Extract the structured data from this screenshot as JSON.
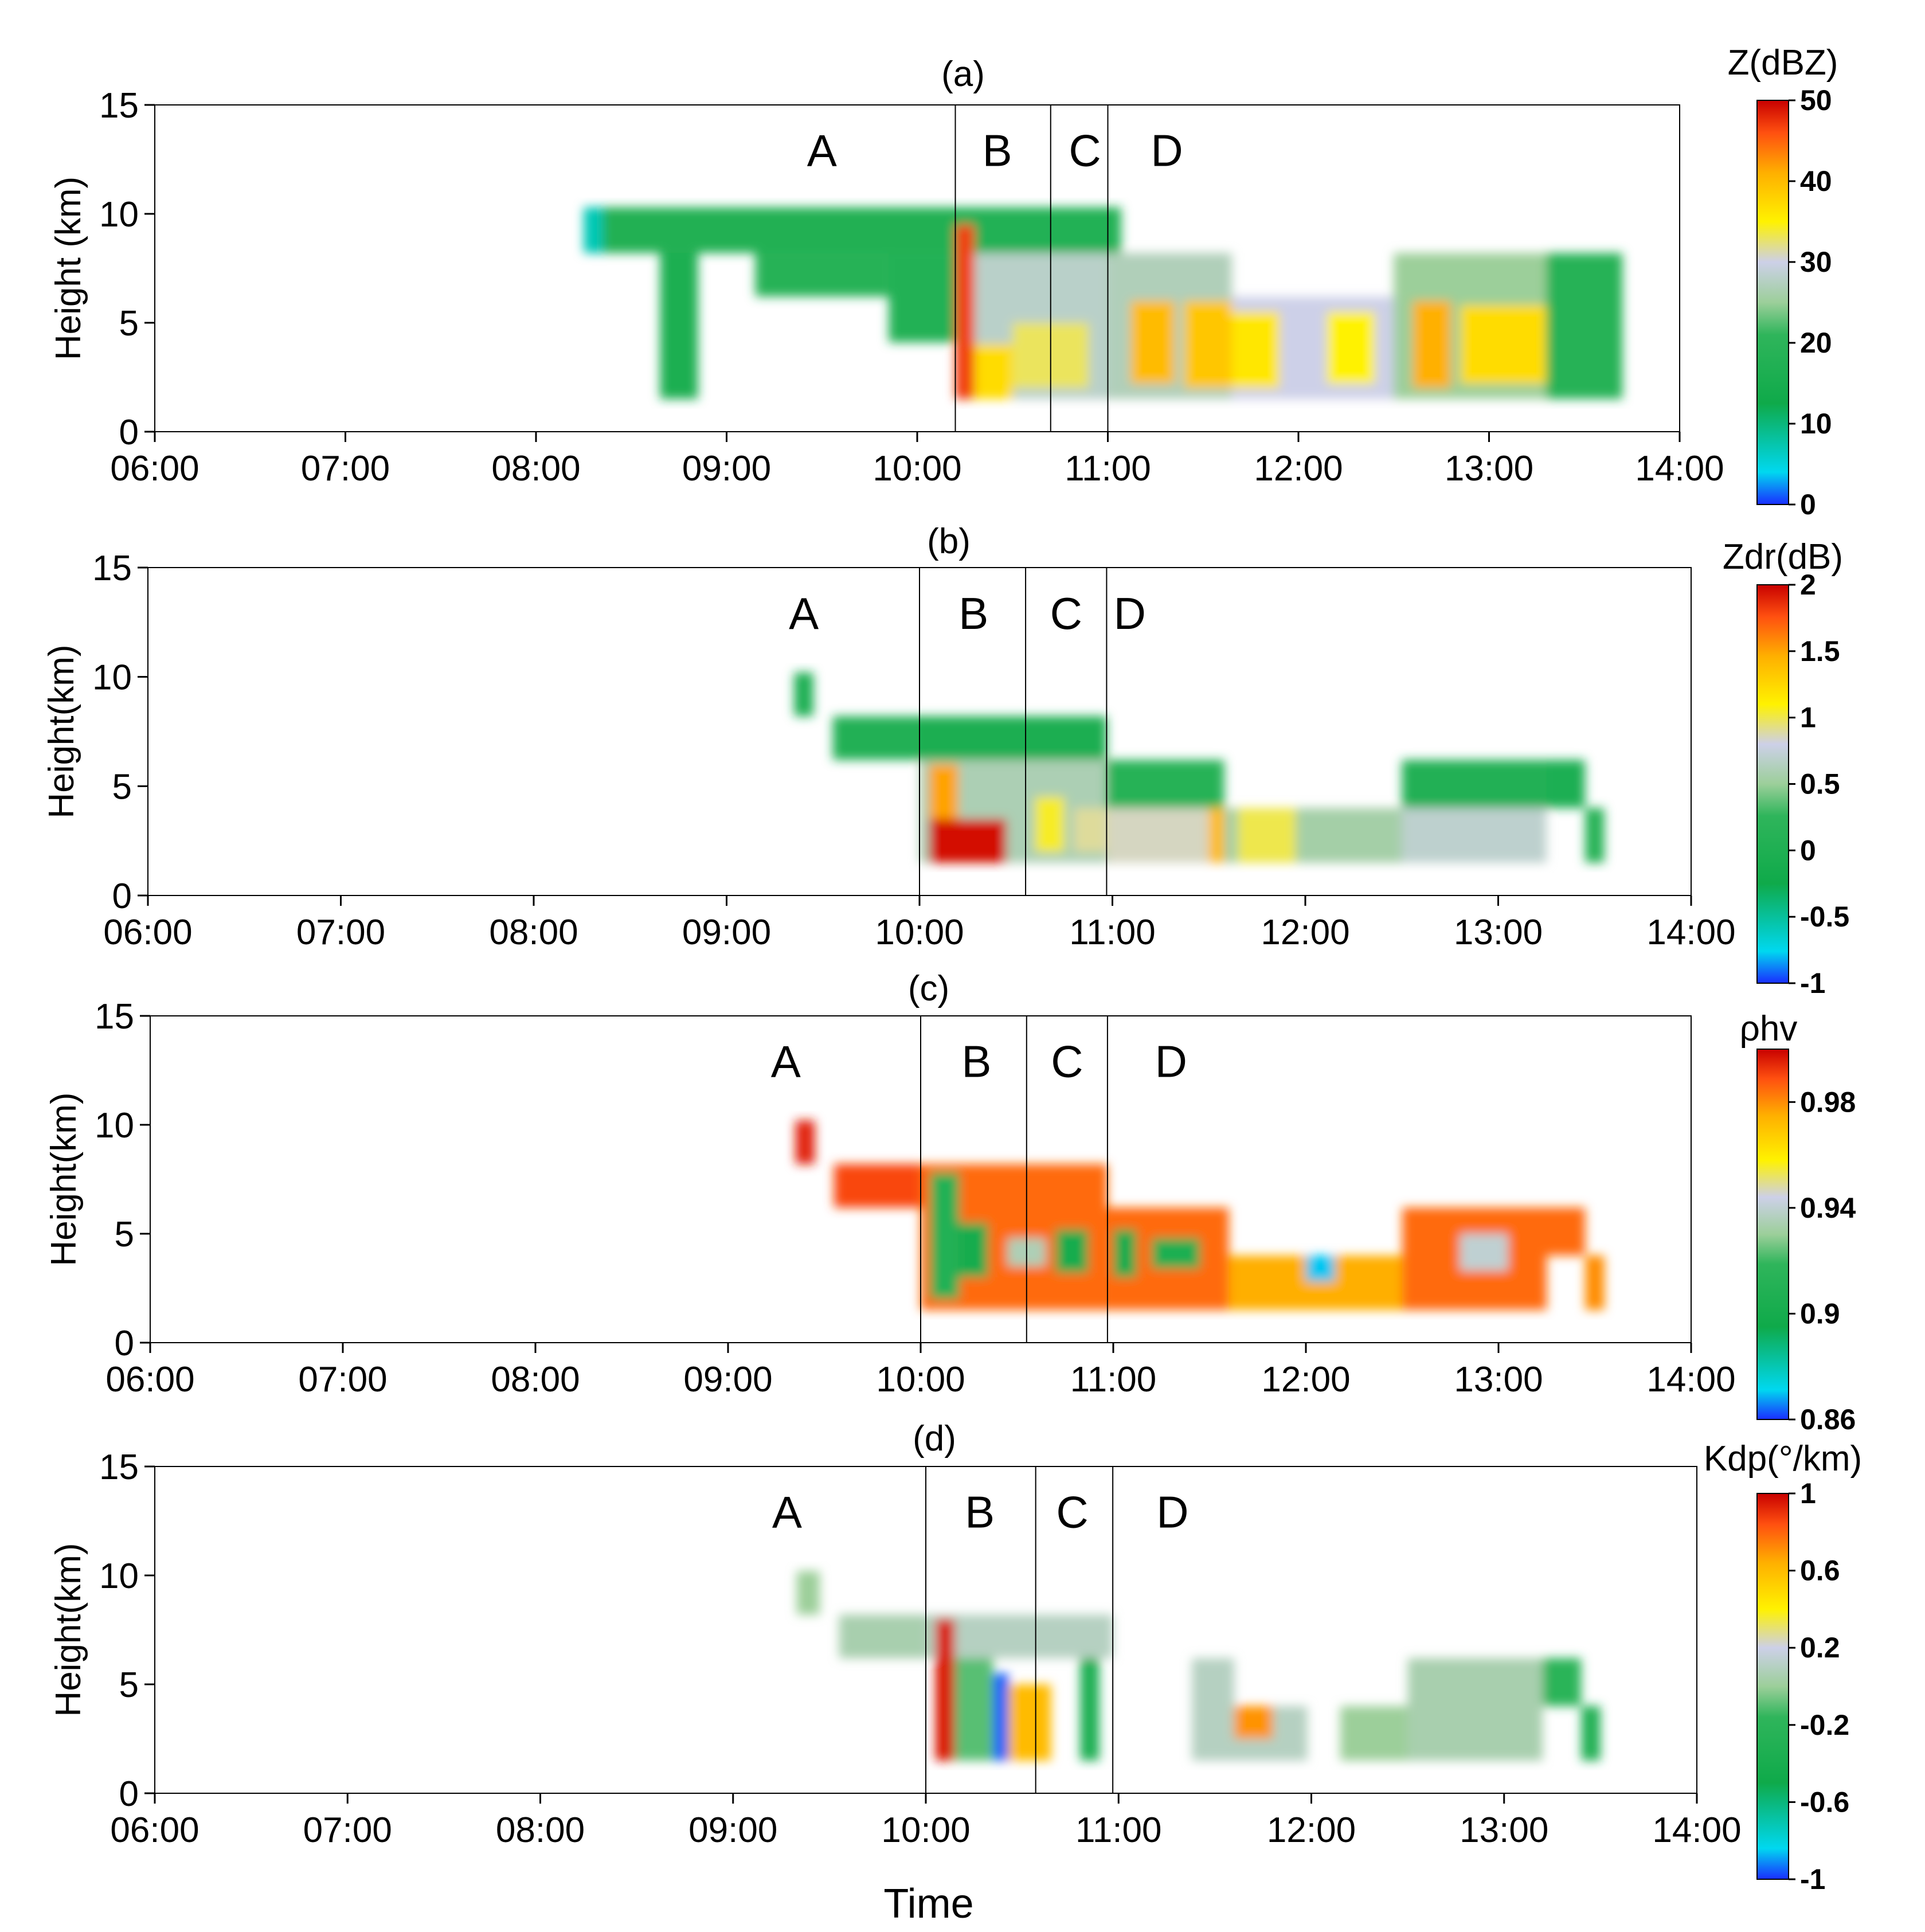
{
  "figure": {
    "xlabel": "Time"
  },
  "chart_data": [
    {
      "type": "heatmap",
      "title": "(a)",
      "ylabel": "Height (km)",
      "xlim": [
        6,
        14
      ],
      "ylim": [
        0,
        15
      ],
      "xticks": [
        6,
        7,
        8,
        9,
        10,
        11,
        12,
        13,
        14
      ],
      "xticklabels": [
        "06:00",
        "07:00",
        "08:00",
        "09:00",
        "10:00",
        "11:00",
        "12:00",
        "13:00",
        "14:00"
      ],
      "yticks": [
        0,
        5,
        10,
        15
      ],
      "yticklabels": [
        "0",
        "5",
        "10",
        "15"
      ],
      "dividers": [
        10.2,
        10.7,
        11.0
      ],
      "phases": [
        {
          "label": "A",
          "x": 9.5
        },
        {
          "label": "B",
          "x": 10.42
        },
        {
          "label": "C",
          "x": 10.88
        },
        {
          "label": "D",
          "x": 11.31
        }
      ],
      "colorbar": {
        "title": "Z(dBZ)",
        "range": [
          0,
          50
        ],
        "ticks": [
          0,
          10,
          20,
          30,
          40,
          50
        ],
        "ticklabels": [
          "0",
          "10",
          "20",
          "30",
          "40",
          "50"
        ]
      },
      "regions": [
        {
          "x0": 8.25,
          "x1": 10.2,
          "y0": 8.2,
          "y1": 10.3,
          "value": 17
        },
        {
          "x0": 8.25,
          "x1": 8.35,
          "y0": 8.2,
          "y1": 10.3,
          "value": 7
        },
        {
          "x0": 8.65,
          "x1": 8.85,
          "y0": 1.5,
          "y1": 8.2,
          "value": 16
        },
        {
          "x0": 9.15,
          "x1": 9.85,
          "y0": 6.2,
          "y1": 8.2,
          "value": 19
        },
        {
          "x0": 9.85,
          "x1": 10.2,
          "y0": 4.1,
          "y1": 8.2,
          "value": 18
        },
        {
          "x0": 10.2,
          "x1": 11.07,
          "y0": 8.2,
          "y1": 10.3,
          "value": 18
        },
        {
          "x0": 10.2,
          "x1": 11.0,
          "y0": 1.5,
          "y1": 8.2,
          "value": 28
        },
        {
          "x0": 10.2,
          "x1": 10.3,
          "y0": 1.5,
          "y1": 9.5,
          "value": 47
        },
        {
          "x0": 10.3,
          "x1": 10.5,
          "y0": 1.5,
          "y1": 4.0,
          "value": 37
        },
        {
          "x0": 10.5,
          "x1": 10.9,
          "y0": 2.0,
          "y1": 5.0,
          "value": 33
        },
        {
          "x0": 11.0,
          "x1": 11.65,
          "y0": 1.5,
          "y1": 8.2,
          "value": 27
        },
        {
          "x0": 11.12,
          "x1": 11.35,
          "y0": 2.2,
          "y1": 6.0,
          "value": 40
        },
        {
          "x0": 11.4,
          "x1": 11.65,
          "y0": 2.0,
          "y1": 6.0,
          "value": 39
        },
        {
          "x0": 11.65,
          "x1": 12.5,
          "y0": 1.5,
          "y1": 6.2,
          "value": 30
        },
        {
          "x0": 11.65,
          "x1": 11.9,
          "y0": 2.0,
          "y1": 5.5,
          "value": 36
        },
        {
          "x0": 12.15,
          "x1": 12.4,
          "y0": 2.2,
          "y1": 5.5,
          "value": 35
        },
        {
          "x0": 12.5,
          "x1": 13.7,
          "y0": 1.5,
          "y1": 8.2,
          "value": 25
        },
        {
          "x0": 12.6,
          "x1": 12.8,
          "y0": 2.0,
          "y1": 6.0,
          "value": 41
        },
        {
          "x0": 12.85,
          "x1": 13.3,
          "y0": 2.2,
          "y1": 5.8,
          "value": 37
        },
        {
          "x0": 13.3,
          "x1": 13.7,
          "y0": 1.5,
          "y1": 8.2,
          "value": 19
        }
      ]
    },
    {
      "type": "heatmap",
      "title": "(b)",
      "ylabel": "Height(km)",
      "xlim": [
        6,
        14
      ],
      "ylim": [
        0,
        15
      ],
      "xticks": [
        6,
        7,
        8,
        9,
        10,
        11,
        12,
        13,
        14
      ],
      "xticklabels": [
        "06:00",
        "07:00",
        "08:00",
        "09:00",
        "10:00",
        "11:00",
        "12:00",
        "13:00",
        "14:00"
      ],
      "yticks": [
        0,
        5,
        10,
        15
      ],
      "yticklabels": [
        "0",
        "5",
        "10",
        "15"
      ],
      "dividers": [
        10.0,
        10.55,
        10.97
      ],
      "phases": [
        {
          "label": "A",
          "x": 9.4
        },
        {
          "label": "B",
          "x": 10.28
        },
        {
          "label": "C",
          "x": 10.76
        },
        {
          "label": "D",
          "x": 11.09
        }
      ],
      "colorbar": {
        "title": "Zdr(dB)",
        "range": [
          -1,
          2
        ],
        "ticks": [
          -1,
          -0.5,
          0,
          0.5,
          1,
          1.5,
          2
        ],
        "ticklabels": [
          "-1",
          "-0.5",
          "0",
          "0.5",
          "1",
          "1.5",
          "2"
        ]
      },
      "regions": [
        {
          "x0": 9.35,
          "x1": 9.45,
          "y0": 8.2,
          "y1": 10.2,
          "value": 0.0
        },
        {
          "x0": 9.55,
          "x1": 10.0,
          "y0": 6.2,
          "y1": 8.2,
          "value": 0.05
        },
        {
          "x0": 10.0,
          "x1": 10.97,
          "y0": 6.2,
          "y1": 8.2,
          "value": -0.05
        },
        {
          "x0": 10.0,
          "x1": 10.97,
          "y0": 1.5,
          "y1": 6.2,
          "value": 0.6
        },
        {
          "x0": 10.05,
          "x1": 10.45,
          "y0": 1.5,
          "y1": 3.5,
          "value": 1.95
        },
        {
          "x0": 10.05,
          "x1": 10.2,
          "y0": 3.5,
          "y1": 6.0,
          "value": 1.5
        },
        {
          "x0": 10.6,
          "x1": 10.75,
          "y0": 2.0,
          "y1": 4.5,
          "value": 1.05
        },
        {
          "x0": 10.8,
          "x1": 10.97,
          "y0": 2.0,
          "y1": 4.0,
          "value": 0.9
        },
        {
          "x0": 10.97,
          "x1": 11.58,
          "y0": 6.2,
          "y1": 6.2,
          "value": 0.0
        },
        {
          "x0": 10.97,
          "x1": 11.58,
          "y0": 4.0,
          "y1": 6.2,
          "value": 0.1
        },
        {
          "x0": 10.97,
          "x1": 11.58,
          "y0": 1.5,
          "y1": 4.0,
          "value": 0.85
        },
        {
          "x0": 11.5,
          "x1": 11.6,
          "y0": 1.5,
          "y1": 4.0,
          "value": 1.4
        },
        {
          "x0": 11.58,
          "x1": 12.5,
          "y0": 1.5,
          "y1": 4.0,
          "value": 0.55
        },
        {
          "x0": 11.65,
          "x1": 11.95,
          "y0": 1.5,
          "y1": 4.0,
          "value": 1.0
        },
        {
          "x0": 12.5,
          "x1": 13.25,
          "y0": 4.0,
          "y1": 6.2,
          "value": 0.05
        },
        {
          "x0": 12.5,
          "x1": 13.25,
          "y0": 1.5,
          "y1": 4.0,
          "value": 0.7
        },
        {
          "x0": 13.25,
          "x1": 13.45,
          "y0": 4.0,
          "y1": 6.2,
          "value": 0.0
        },
        {
          "x0": 13.45,
          "x1": 13.55,
          "y0": 1.5,
          "y1": 4.0,
          "value": 0.1
        }
      ]
    },
    {
      "type": "heatmap",
      "title": "(c)",
      "ylabel": "Height(km)",
      "xlim": [
        6,
        14
      ],
      "ylim": [
        0,
        15
      ],
      "xticks": [
        6,
        7,
        8,
        9,
        10,
        11,
        12,
        13,
        14
      ],
      "xticklabels": [
        "06:00",
        "07:00",
        "08:00",
        "09:00",
        "10:00",
        "11:00",
        "12:00",
        "13:00",
        "14:00"
      ],
      "yticks": [
        0,
        5,
        10,
        15
      ],
      "yticklabels": [
        "0",
        "5",
        "10",
        "15"
      ],
      "dividers": [
        10.0,
        10.55,
        10.97
      ],
      "phases": [
        {
          "label": "A",
          "x": 9.3
        },
        {
          "label": "B",
          "x": 10.29
        },
        {
          "label": "C",
          "x": 10.76
        },
        {
          "label": "D",
          "x": 11.3
        }
      ],
      "colorbar": {
        "title": "ρhv",
        "range": [
          0.86,
          1.0
        ],
        "ticks": [
          0.86,
          0.9,
          0.94,
          0.98
        ],
        "ticklabels": [
          "0.86",
          "0.9",
          "0.94",
          "0.98"
        ]
      },
      "regions": [
        {
          "x0": 9.35,
          "x1": 9.45,
          "y0": 8.2,
          "y1": 10.2,
          "value": 0.995
        },
        {
          "x0": 9.55,
          "x1": 10.0,
          "y0": 6.2,
          "y1": 8.2,
          "value": 0.99
        },
        {
          "x0": 10.0,
          "x1": 10.97,
          "y0": 1.5,
          "y1": 8.2,
          "value": 0.985
        },
        {
          "x0": 10.05,
          "x1": 10.2,
          "y0": 2.0,
          "y1": 7.8,
          "value": 0.91
        },
        {
          "x0": 10.2,
          "x1": 10.35,
          "y0": 3.0,
          "y1": 5.5,
          "value": 0.9
        },
        {
          "x0": 10.45,
          "x1": 10.65,
          "y0": 3.5,
          "y1": 4.8,
          "value": 0.935
        },
        {
          "x0": 10.7,
          "x1": 10.87,
          "y0": 3.2,
          "y1": 5.2,
          "value": 0.9
        },
        {
          "x0": 10.97,
          "x1": 11.6,
          "y0": 1.5,
          "y1": 6.2,
          "value": 0.985
        },
        {
          "x0": 11.0,
          "x1": 11.12,
          "y0": 3.0,
          "y1": 5.2,
          "value": 0.9
        },
        {
          "x0": 11.2,
          "x1": 11.45,
          "y0": 3.4,
          "y1": 4.8,
          "value": 0.905
        },
        {
          "x0": 11.6,
          "x1": 12.5,
          "y0": 1.5,
          "y1": 4.0,
          "value": 0.975
        },
        {
          "x0": 12.0,
          "x1": 12.15,
          "y0": 2.8,
          "y1": 4.0,
          "value": 0.87
        },
        {
          "x0": 12.5,
          "x1": 13.25,
          "y0": 1.5,
          "y1": 6.2,
          "value": 0.985
        },
        {
          "x0": 12.8,
          "x1": 13.05,
          "y0": 3.3,
          "y1": 5.0,
          "value": 0.94
        },
        {
          "x0": 13.25,
          "x1": 13.45,
          "y0": 4.0,
          "y1": 6.2,
          "value": 0.985
        },
        {
          "x0": 13.45,
          "x1": 13.55,
          "y0": 1.5,
          "y1": 4.0,
          "value": 0.98
        }
      ]
    },
    {
      "type": "heatmap",
      "title": "(d)",
      "ylabel": "Height(km)",
      "xlim": [
        6,
        14
      ],
      "ylim": [
        0,
        15
      ],
      "xticks": [
        6,
        7,
        8,
        9,
        10,
        11,
        12,
        13,
        14
      ],
      "xticklabels": [
        "06:00",
        "07:00",
        "08:00",
        "09:00",
        "10:00",
        "11:00",
        "12:00",
        "13:00",
        "14:00"
      ],
      "yticks": [
        0,
        5,
        10,
        15
      ],
      "yticklabels": [
        "0",
        "5",
        "10",
        "15"
      ],
      "dividers": [
        10.0,
        10.57,
        10.97
      ],
      "phases": [
        {
          "label": "A",
          "x": 9.28
        },
        {
          "label": "B",
          "x": 10.28
        },
        {
          "label": "C",
          "x": 10.76
        },
        {
          "label": "D",
          "x": 11.28
        }
      ],
      "colorbar": {
        "title": "Kdp(°/km)",
        "range": [
          -1,
          1
        ],
        "ticks": [
          -1,
          -0.6,
          -0.2,
          0.2,
          0.6,
          1
        ],
        "ticklabels": [
          "-1",
          "-0.6",
          "-0.2",
          "0.2",
          "0.6",
          "1"
        ]
      },
      "regions": [
        {
          "x0": 9.33,
          "x1": 9.45,
          "y0": 8.2,
          "y1": 10.2,
          "value": 0.0
        },
        {
          "x0": 9.55,
          "x1": 10.0,
          "y0": 6.2,
          "y1": 8.2,
          "value": 0.05
        },
        {
          "x0": 10.0,
          "x1": 10.97,
          "y0": 6.2,
          "y1": 8.2,
          "value": 0.1
        },
        {
          "x0": 10.05,
          "x1": 10.15,
          "y0": 1.5,
          "y1": 8.0,
          "value": 0.95
        },
        {
          "x0": 10.15,
          "x1": 10.35,
          "y0": 1.5,
          "y1": 6.2,
          "value": -0.1
        },
        {
          "x0": 10.35,
          "x1": 10.43,
          "y0": 1.5,
          "y1": 5.5,
          "value": -0.95
        },
        {
          "x0": 10.43,
          "x1": 10.65,
          "y0": 1.5,
          "y1": 5.0,
          "value": 0.6
        },
        {
          "x0": 10.8,
          "x1": 10.9,
          "y0": 1.5,
          "y1": 6.2,
          "value": -0.35
        },
        {
          "x0": 11.38,
          "x1": 11.6,
          "y0": 1.5,
          "y1": 6.2,
          "value": 0.1
        },
        {
          "x0": 11.6,
          "x1": 11.98,
          "y0": 1.5,
          "y1": 4.0,
          "value": 0.1
        },
        {
          "x0": 11.6,
          "x1": 11.8,
          "y0": 2.5,
          "y1": 4.0,
          "value": 0.7
        },
        {
          "x0": 12.15,
          "x1": 12.5,
          "y0": 1.5,
          "y1": 4.0,
          "value": 0.0
        },
        {
          "x0": 12.5,
          "x1": 13.2,
          "y0": 1.5,
          "y1": 6.2,
          "value": 0.05
        },
        {
          "x0": 13.2,
          "x1": 13.4,
          "y0": 4.0,
          "y1": 6.2,
          "value": -0.2
        },
        {
          "x0": 13.4,
          "x1": 13.5,
          "y0": 1.5,
          "y1": 4.0,
          "value": -0.3
        }
      ]
    }
  ]
}
